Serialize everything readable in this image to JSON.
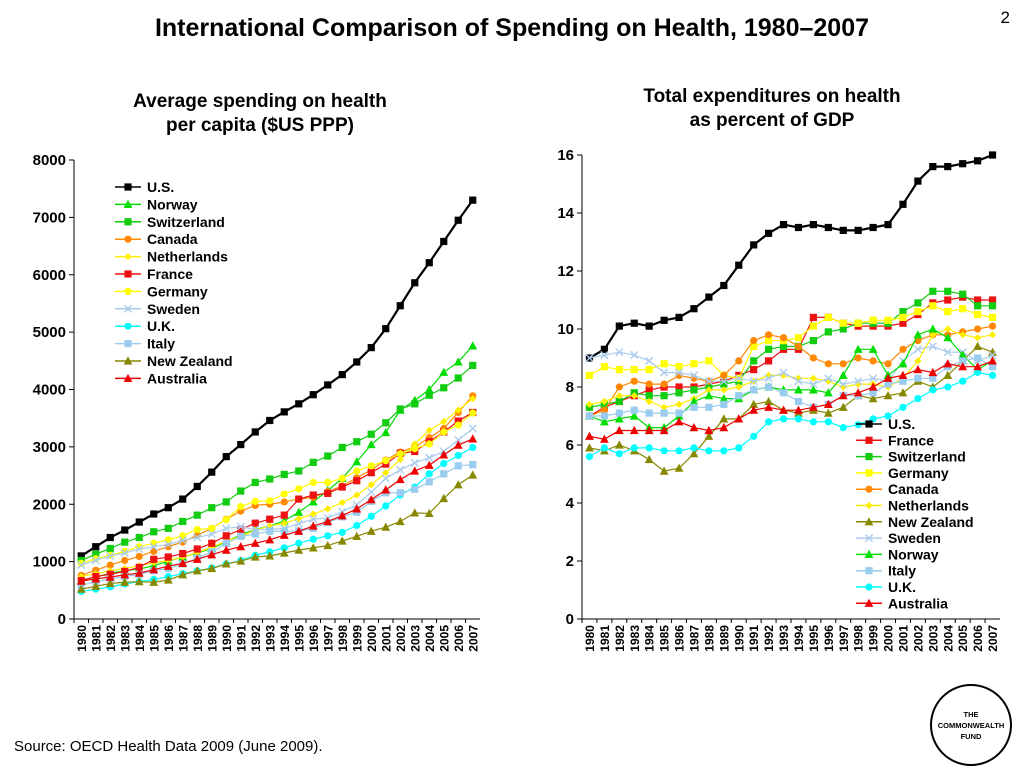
{
  "header": {
    "title": "International Comparison of Spending on Health, 1980–2007",
    "page_number": "2"
  },
  "footer": {
    "source": "Source: OECD Health Data 2009 (June 2009).",
    "logo_lines": [
      "THE",
      "COMMONWEALTH",
      "FUND"
    ]
  },
  "colors": {
    "us": "#000000",
    "norway": "#00dd00",
    "switzerland": "#11cc11",
    "canada": "#ff8800",
    "netherlands": "#ffee00",
    "france": "#ee1111",
    "germany": "#ffff00",
    "sweden": "#aaccee",
    "uk": "#00ffff",
    "italy": "#99ccee",
    "new_zealand": "#888800",
    "australia": "#ee0000"
  },
  "chart_data": [
    {
      "type": "line",
      "title_lines": [
        "Average spending on health",
        "per capita ($US PPP)"
      ],
      "xlabel": "",
      "ylabel": "",
      "ylim": [
        0,
        8000
      ],
      "yticks": [
        0,
        1000,
        2000,
        3000,
        4000,
        5000,
        6000,
        7000,
        8000
      ],
      "grid": false,
      "legend_position": "top-left",
      "x": [
        1980,
        1981,
        1982,
        1983,
        1984,
        1985,
        1986,
        1987,
        1988,
        1989,
        1990,
        1991,
        1992,
        1993,
        1994,
        1995,
        1996,
        1997,
        1998,
        1999,
        2000,
        2001,
        2002,
        2003,
        2004,
        2005,
        2006,
        2007
      ],
      "series": [
        {
          "name": "U.S.",
          "color": "#000000",
          "marker": "square",
          "values": [
            1100,
            1260,
            1420,
            1550,
            1690,
            1830,
            1940,
            2090,
            2310,
            2560,
            2830,
            3040,
            3260,
            3460,
            3610,
            3750,
            3910,
            4080,
            4260,
            4480,
            4730,
            5060,
            5460,
            5860,
            6210,
            6580,
            6950,
            7300
          ]
        },
        {
          "name": "Norway",
          "color": "#00dd00",
          "marker": "triangle",
          "values": [
            680,
            730,
            800,
            840,
            870,
            930,
            1010,
            1080,
            1150,
            1230,
            1350,
            1470,
            1560,
            1620,
            1710,
            1860,
            2040,
            2240,
            2450,
            2740,
            3040,
            3250,
            3640,
            3810,
            4000,
            4300,
            4480,
            4760
          ]
        },
        {
          "name": "Switzerland",
          "color": "#11cc11",
          "marker": "square",
          "values": [
            1020,
            1130,
            1230,
            1340,
            1420,
            1520,
            1580,
            1700,
            1810,
            1940,
            2040,
            2230,
            2380,
            2440,
            2520,
            2580,
            2730,
            2840,
            2990,
            3090,
            3220,
            3420,
            3660,
            3750,
            3900,
            4030,
            4200,
            4420
          ]
        },
        {
          "name": "Canada",
          "color": "#ff8800",
          "marker": "circle",
          "values": [
            760,
            850,
            940,
            1020,
            1090,
            1180,
            1260,
            1340,
            1460,
            1580,
            1740,
            1880,
            1980,
            2000,
            2040,
            2090,
            2120,
            2220,
            2320,
            2460,
            2600,
            2770,
            2910,
            3000,
            3160,
            3320,
            3600,
            3890
          ]
        },
        {
          "name": "Netherlands",
          "color": "#ffee00",
          "marker": "diamond",
          "values": [
            740,
            790,
            840,
            880,
            930,
            980,
            1020,
            1080,
            1160,
            1250,
            1360,
            1440,
            1550,
            1620,
            1670,
            1750,
            1830,
            1920,
            2030,
            2160,
            2340,
            2550,
            2780,
            3050,
            3290,
            3440,
            3640,
            3840
          ]
        },
        {
          "name": "France",
          "color": "#ee1111",
          "marker": "square",
          "values": [
            670,
            740,
            780,
            830,
            900,
            1040,
            1080,
            1140,
            1220,
            1320,
            1450,
            1560,
            1670,
            1740,
            1810,
            2090,
            2160,
            2190,
            2300,
            2410,
            2550,
            2700,
            2890,
            2920,
            3090,
            3260,
            3450,
            3600
          ]
        },
        {
          "name": "Germany",
          "color": "#ffff00",
          "marker": "circle",
          "values": [
            970,
            1050,
            1110,
            1180,
            1260,
            1320,
            1380,
            1450,
            1560,
            1580,
            1730,
            1960,
            2050,
            2060,
            2180,
            2270,
            2380,
            2380,
            2450,
            2580,
            2670,
            2760,
            2880,
            2970,
            3050,
            3260,
            3380,
            3590
          ]
        },
        {
          "name": "Sweden",
          "color": "#aaccee",
          "marker": "x",
          "values": [
            940,
            1020,
            1100,
            1150,
            1220,
            1260,
            1300,
            1370,
            1420,
            1480,
            1580,
            1610,
            1560,
            1560,
            1580,
            1660,
            1740,
            1760,
            1870,
            1990,
            2210,
            2450,
            2600,
            2720,
            2810,
            2920,
            3120,
            3320
          ]
        },
        {
          "name": "U.K.",
          "color": "#00ffff",
          "marker": "circle",
          "values": [
            480,
            520,
            560,
            610,
            650,
            690,
            740,
            790,
            840,
            890,
            960,
            1020,
            1110,
            1170,
            1240,
            1320,
            1390,
            1450,
            1510,
            1630,
            1790,
            1970,
            2160,
            2300,
            2530,
            2710,
            2850,
            2990
          ]
        },
        {
          "name": "Italy",
          "color": "#99ccee",
          "marker": "square",
          "values": [
            590,
            650,
            700,
            740,
            780,
            840,
            880,
            960,
            1060,
            1170,
            1320,
            1440,
            1480,
            1530,
            1530,
            1530,
            1580,
            1680,
            1780,
            1860,
            2050,
            2200,
            2200,
            2260,
            2390,
            2530,
            2670,
            2690
          ]
        },
        {
          "name": "New Zealand",
          "color": "#888800",
          "marker": "triangle",
          "values": [
            520,
            570,
            620,
            640,
            650,
            640,
            680,
            770,
            840,
            880,
            960,
            1010,
            1080,
            1100,
            1150,
            1200,
            1240,
            1280,
            1360,
            1440,
            1530,
            1600,
            1700,
            1850,
            1840,
            2100,
            2340,
            2510
          ]
        },
        {
          "name": "Australia",
          "color": "#ee0000",
          "marker": "triangle",
          "values": [
            660,
            700,
            730,
            770,
            800,
            860,
            920,
            970,
            1040,
            1120,
            1200,
            1260,
            1320,
            1380,
            1460,
            1530,
            1620,
            1700,
            1800,
            1920,
            2080,
            2250,
            2430,
            2580,
            2680,
            2860,
            3030,
            3140
          ]
        }
      ]
    },
    {
      "type": "line",
      "title_lines": [
        "Total expenditures on health",
        "as percent of GDP"
      ],
      "xlabel": "",
      "ylabel": "",
      "ylim": [
        0,
        16
      ],
      "yticks": [
        0,
        2,
        4,
        6,
        8,
        10,
        12,
        14,
        16
      ],
      "grid": false,
      "legend_position": "bottom-right",
      "x": [
        1980,
        1981,
        1982,
        1983,
        1984,
        1985,
        1986,
        1987,
        1988,
        1989,
        1990,
        1991,
        1992,
        1993,
        1994,
        1995,
        1996,
        1997,
        1998,
        1999,
        2000,
        2001,
        2002,
        2003,
        2004,
        2005,
        2006,
        2007
      ],
      "series": [
        {
          "name": "U.S.",
          "color": "#000000",
          "marker": "square",
          "values": [
            9.0,
            9.3,
            10.1,
            10.2,
            10.1,
            10.3,
            10.4,
            10.7,
            11.1,
            11.5,
            12.2,
            12.9,
            13.3,
            13.6,
            13.5,
            13.6,
            13.5,
            13.4,
            13.4,
            13.5,
            13.6,
            14.3,
            15.1,
            15.6,
            15.6,
            15.7,
            15.8,
            16.0
          ]
        },
        {
          "name": "France",
          "color": "#ee1111",
          "marker": "square",
          "values": [
            7.0,
            7.3,
            7.5,
            7.7,
            7.9,
            8.0,
            8.0,
            8.0,
            8.1,
            8.2,
            8.4,
            8.6,
            8.9,
            9.3,
            9.3,
            10.4,
            10.4,
            10.2,
            10.1,
            10.1,
            10.1,
            10.2,
            10.5,
            10.9,
            11.0,
            11.1,
            11.0,
            11.0
          ]
        },
        {
          "name": "Switzerland",
          "color": "#11cc11",
          "marker": "square",
          "values": [
            7.3,
            7.4,
            7.5,
            7.8,
            7.7,
            7.7,
            7.8,
            7.9,
            8.0,
            8.1,
            8.2,
            8.9,
            9.3,
            9.4,
            9.4,
            9.6,
            9.9,
            10.0,
            10.2,
            10.2,
            10.2,
            10.6,
            10.9,
            11.3,
            11.3,
            11.2,
            10.8,
            10.8
          ]
        },
        {
          "name": "Germany",
          "color": "#ffff00",
          "marker": "square",
          "values": [
            8.4,
            8.7,
            8.6,
            8.6,
            8.6,
            8.8,
            8.7,
            8.8,
            8.9,
            8.4,
            8.3,
            9.4,
            9.6,
            9.6,
            9.7,
            10.1,
            10.4,
            10.2,
            10.2,
            10.3,
            10.3,
            10.4,
            10.6,
            10.8,
            10.6,
            10.7,
            10.5,
            10.4
          ]
        },
        {
          "name": "Canada",
          "color": "#ff8800",
          "marker": "circle",
          "values": [
            7.0,
            7.2,
            8.0,
            8.2,
            8.1,
            8.1,
            8.4,
            8.3,
            8.2,
            8.4,
            8.9,
            9.6,
            9.8,
            9.7,
            9.4,
            9.0,
            8.8,
            8.8,
            9.0,
            8.9,
            8.8,
            9.3,
            9.6,
            9.8,
            9.8,
            9.9,
            10.0,
            10.1
          ]
        },
        {
          "name": "Netherlands",
          "color": "#ffee00",
          "marker": "diamond",
          "values": [
            7.4,
            7.5,
            7.7,
            7.7,
            7.5,
            7.3,
            7.4,
            7.6,
            7.9,
            7.9,
            8.0,
            8.2,
            8.4,
            8.4,
            8.3,
            8.3,
            8.2,
            8.0,
            8.1,
            8.1,
            8.0,
            8.3,
            8.9,
            9.8,
            10.0,
            9.8,
            9.7,
            9.8
          ]
        },
        {
          "name": "New Zealand",
          "color": "#888800",
          "marker": "triangle",
          "values": [
            5.9,
            5.8,
            6.0,
            5.8,
            5.5,
            5.1,
            5.2,
            5.7,
            6.3,
            6.9,
            6.9,
            7.4,
            7.5,
            7.2,
            7.1,
            7.2,
            7.1,
            7.3,
            7.7,
            7.6,
            7.7,
            7.8,
            8.2,
            8.0,
            8.4,
            8.9,
            9.4,
            9.2
          ]
        },
        {
          "name": "Sweden",
          "color": "#aaccee",
          "marker": "x",
          "values": [
            9.0,
            9.1,
            9.2,
            9.1,
            8.9,
            8.5,
            8.5,
            8.4,
            8.2,
            8.2,
            8.3,
            8.2,
            8.3,
            8.5,
            8.2,
            8.1,
            8.3,
            8.1,
            8.2,
            8.3,
            8.2,
            8.9,
            9.3,
            9.4,
            9.2,
            9.2,
            8.9,
            9.1
          ]
        },
        {
          "name": "Norway",
          "color": "#00dd00",
          "marker": "triangle",
          "values": [
            7.0,
            6.8,
            6.9,
            7.0,
            6.6,
            6.6,
            7.0,
            7.5,
            7.7,
            7.6,
            7.6,
            7.9,
            8.0,
            7.9,
            7.9,
            7.9,
            7.8,
            8.4,
            9.3,
            9.3,
            8.4,
            8.8,
            9.8,
            10.0,
            9.7,
            9.1,
            8.6,
            8.9
          ]
        },
        {
          "name": "Italy",
          "color": "#99ccee",
          "marker": "square",
          "values": [
            7.0,
            7.0,
            7.1,
            7.2,
            7.1,
            7.1,
            7.1,
            7.3,
            7.3,
            7.4,
            7.7,
            7.9,
            8.0,
            7.8,
            7.5,
            7.3,
            7.4,
            7.7,
            7.7,
            7.8,
            8.1,
            8.2,
            8.3,
            8.3,
            8.7,
            8.9,
            9.0,
            8.7
          ]
        },
        {
          "name": "U.K.",
          "color": "#00ffff",
          "marker": "circle",
          "values": [
            5.6,
            5.9,
            5.7,
            5.9,
            5.9,
            5.8,
            5.8,
            5.9,
            5.8,
            5.8,
            5.9,
            6.3,
            6.8,
            6.9,
            6.9,
            6.8,
            6.8,
            6.6,
            6.7,
            6.9,
            7.0,
            7.3,
            7.6,
            7.9,
            8.0,
            8.2,
            8.5,
            8.4
          ]
        },
        {
          "name": "Australia",
          "color": "#ee0000",
          "marker": "triangle",
          "values": [
            6.3,
            6.2,
            6.5,
            6.5,
            6.5,
            6.5,
            6.8,
            6.6,
            6.5,
            6.6,
            6.9,
            7.2,
            7.3,
            7.2,
            7.2,
            7.3,
            7.4,
            7.7,
            7.8,
            8.0,
            8.3,
            8.4,
            8.6,
            8.5,
            8.8,
            8.7,
            8.7,
            8.9
          ]
        }
      ]
    }
  ]
}
